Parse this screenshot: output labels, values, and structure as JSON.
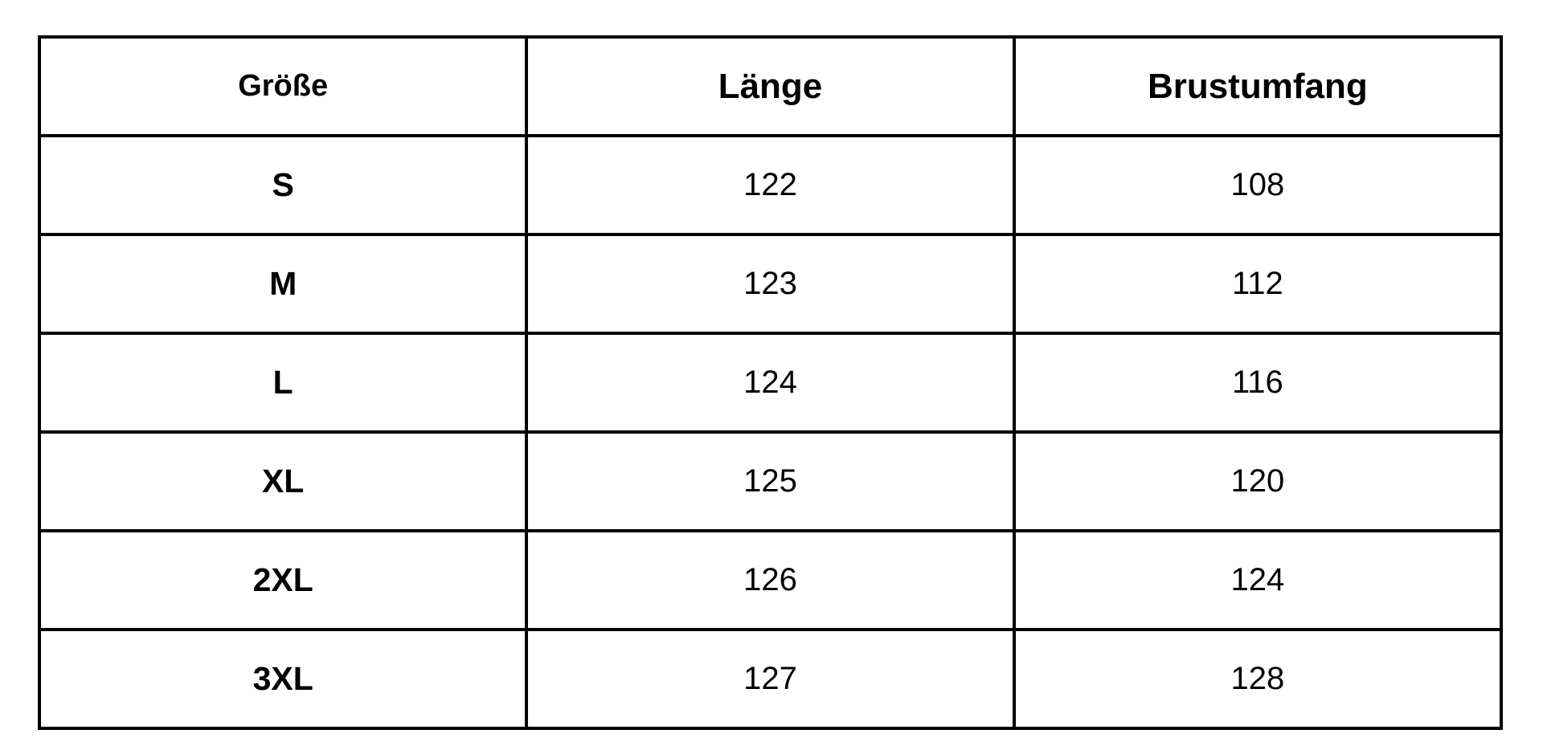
{
  "table": {
    "headers": [
      "Größe",
      "Länge",
      "Brustumfang"
    ],
    "rows": [
      [
        "S",
        "122",
        "108"
      ],
      [
        "M",
        "123",
        "112"
      ],
      [
        "L",
        "124",
        "116"
      ],
      [
        "XL",
        "125",
        "120"
      ],
      [
        "2XL",
        "126",
        "124"
      ],
      [
        "3XL",
        "127",
        "128"
      ]
    ]
  },
  "chart_data": {
    "type": "table",
    "columns": [
      "Größe",
      "Länge",
      "Brustumfang"
    ],
    "rows": [
      [
        "S",
        122,
        108
      ],
      [
        "M",
        123,
        112
      ],
      [
        "L",
        124,
        116
      ],
      [
        "XL",
        125,
        120
      ],
      [
        "2XL",
        126,
        124
      ],
      [
        "3XL",
        127,
        128
      ]
    ]
  },
  "colors": {
    "border": "#000000",
    "text": "#000000",
    "background": "#ffffff"
  }
}
